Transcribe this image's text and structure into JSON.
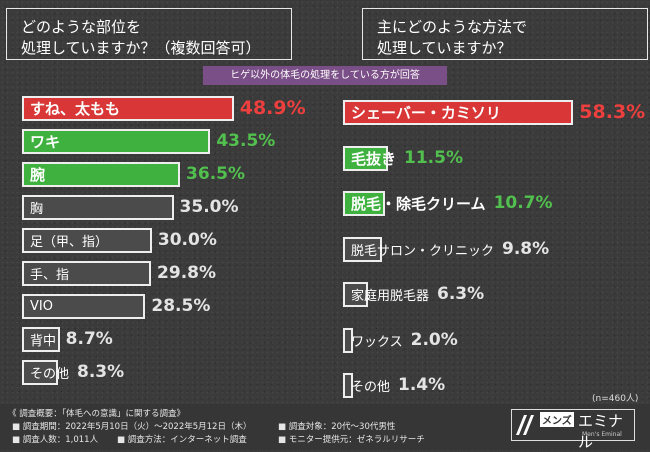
{
  "question_left": {
    "line1": "どのような部位を",
    "line2": "処理していますか？（複数回答可）"
  },
  "question_right": {
    "line1": "主にどのような方法で",
    "line2": "処理していますか？"
  },
  "subnote": "ヒゲ以外の体毛の処理をしている方が回答",
  "n_note": "(n=460人)",
  "colors": {
    "red": "#d93737",
    "green": "#3fb13f",
    "gray": "#4b4b4b",
    "purple": "#7a4e86"
  },
  "chart_data": [
    {
      "type": "bar",
      "orientation": "horizontal",
      "categories": [
        "すね、太もも",
        "ワキ",
        "腕",
        "胸",
        "足（甲、指）",
        "手、指",
        "VIO",
        "背中",
        "その他"
      ],
      "values": [
        48.9,
        43.5,
        36.5,
        35.0,
        30.0,
        29.8,
        28.5,
        8.7,
        8.3
      ],
      "labels": [
        "48.9%",
        "43.5%",
        "36.5%",
        "35.0%",
        "30.0%",
        "29.8%",
        "28.5%",
        "8.7%",
        "8.3%"
      ],
      "highlight": [
        "red",
        "green",
        "green",
        "gray",
        "gray",
        "gray",
        "gray",
        "gray",
        "gray"
      ],
      "unit": "%"
    },
    {
      "type": "bar",
      "orientation": "horizontal",
      "categories": [
        "シェーバー・カミソリ",
        "毛抜き",
        "脱毛・除毛クリーム",
        "脱毛サロン・クリニック",
        "家庭用脱毛器",
        "ワックス",
        "その他"
      ],
      "values": [
        58.3,
        11.5,
        10.7,
        9.8,
        6.3,
        2.0,
        1.4
      ],
      "labels": [
        "58.3%",
        "11.5%",
        "10.7%",
        "9.8%",
        "6.3%",
        "2.0%",
        "1.4%"
      ],
      "highlight": [
        "red",
        "green",
        "green",
        "gray",
        "gray",
        "gray",
        "gray"
      ],
      "unit": "%"
    }
  ],
  "footer": {
    "title": "《 調査概要：「体毛への意識」に関する調査》",
    "period": "■ 調査期間：2022年5月10日（火）〜2022年5月12日（木）",
    "count": "■ 調査人数：1,011人",
    "method": "■ 調査方法：インターネット調査",
    "target": "■ 調査対象：20代〜30代男性",
    "provider": "■ モニター提供元：ゼネラルリサーチ"
  },
  "logo": {
    "mens": "メンズ",
    "name": "エミナル",
    "sub": "Men's Eminal"
  }
}
